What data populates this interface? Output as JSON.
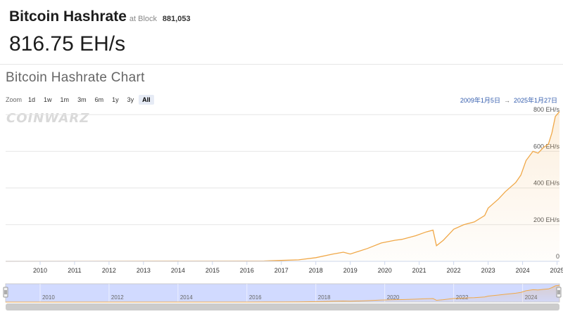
{
  "header": {
    "title": "Bitcoin Hashrate",
    "block_prefix": "at Block",
    "block_number": "881,053",
    "current_rate": "816.75 EH/s"
  },
  "chart_title": "Bitcoin Hashrate Chart",
  "zoom": {
    "label": "Zoom",
    "options": [
      "1d",
      "1w",
      "1m",
      "3m",
      "6m",
      "1y",
      "3y",
      "All"
    ],
    "active": "All"
  },
  "range": {
    "from": "2009年1月5日",
    "to": "2025年1月27日"
  },
  "watermark": "COINWARZ",
  "colors": {
    "line": "#f0a848",
    "navigator_mask": "#ccd6ff",
    "range_text": "#335cad"
  },
  "chart_data": {
    "type": "area",
    "y_unit": "EH/s",
    "x_ticks": [
      "2010",
      "2011",
      "2012",
      "2013",
      "2014",
      "2015",
      "2016",
      "2017",
      "2018",
      "2019",
      "2020",
      "2021",
      "2022",
      "2023",
      "2024",
      "2025"
    ],
    "y_ticks": [
      "0",
      "200 EH/s",
      "400 EH/s",
      "600 EH/s",
      "800 EH/s"
    ],
    "ylim": [
      0,
      820
    ],
    "xlim": [
      2009.0,
      2025.07
    ],
    "grid": true,
    "navigator_ticks": [
      "2010",
      "2012",
      "2014",
      "2016",
      "2018",
      "2020",
      "2022",
      "2024"
    ],
    "series": [
      {
        "x": [
          2009.0,
          2016.0,
          2016.5,
          2017.0,
          2017.5,
          2018.0,
          2018.5,
          2018.8,
          2019.0,
          2019.5,
          2019.9,
          2020.3,
          2020.5,
          2020.9,
          2021.2,
          2021.4,
          2021.5,
          2021.7,
          2022.0,
          2022.3,
          2022.6,
          2022.9,
          2023.0,
          2023.3,
          2023.5,
          2023.8,
          2023.95,
          2024.1,
          2024.3,
          2024.45,
          2024.6,
          2024.75,
          2024.85,
          2024.95,
          2025.07
        ],
        "y": [
          0,
          1.5,
          2,
          5,
          8,
          20,
          40,
          50,
          40,
          70,
          100,
          115,
          120,
          140,
          160,
          170,
          85,
          115,
          175,
          200,
          215,
          250,
          290,
          340,
          380,
          430,
          470,
          550,
          600,
          590,
          620,
          640,
          700,
          790,
          817
        ]
      }
    ]
  }
}
